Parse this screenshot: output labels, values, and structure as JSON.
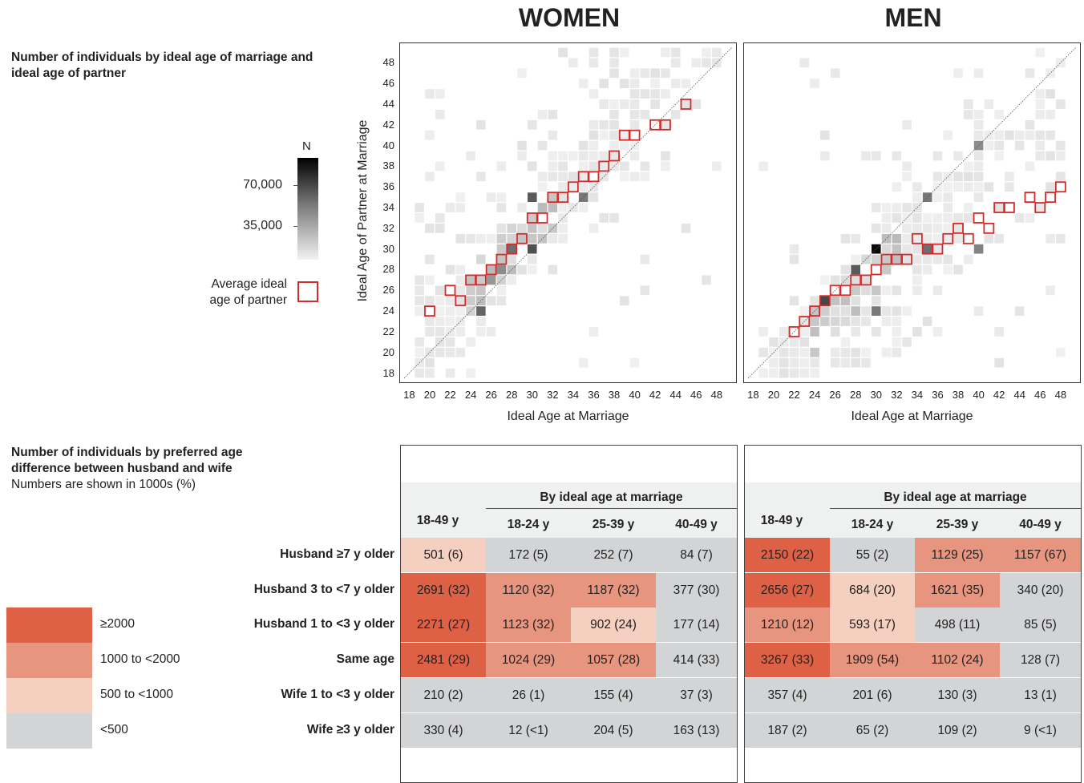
{
  "panels": {
    "women_title": "WOMEN",
    "men_title": "MEN"
  },
  "heatmap_section": {
    "title": "Number of individuals by ideal age of marriage and ideal age of partner"
  },
  "heat_legend": {
    "title": "N",
    "ticks": [
      "70,000",
      "35,000"
    ],
    "avg_label": "Average ideal age of partner"
  },
  "axes": {
    "xlabel": "Ideal Age at Marriage",
    "ylabel": "Ideal Age of Partner at Marriage",
    "x_ticks": [
      "18",
      "20",
      "22",
      "24",
      "26",
      "28",
      "30",
      "32",
      "34",
      "36",
      "38",
      "40",
      "42",
      "44",
      "46",
      "48"
    ],
    "y_ticks": [
      "48",
      "46",
      "44",
      "42",
      "40",
      "38",
      "36",
      "34",
      "32",
      "30",
      "28",
      "26",
      "24",
      "22",
      "20",
      "18"
    ]
  },
  "table_section": {
    "title": "Number of individuals by preferred age difference between husband and wife",
    "subtitle": "Numbers are shown in 1000s (%)"
  },
  "table_headers": {
    "overall": "18-49 y",
    "group": "By ideal age at marriage",
    "sub": [
      "18-24 y",
      "25-39 y",
      "40-49 y"
    ]
  },
  "color_legend": {
    "items": [
      {
        "label": "≥2000",
        "color": "#de6146"
      },
      {
        "label": "1000 to <2000",
        "color": "#e8957f"
      },
      {
        "label": "500 to <1000",
        "color": "#f5cfc0"
      },
      {
        "label": "<500",
        "color": "#d3d4d6"
      }
    ]
  },
  "chart_data": [
    {
      "type": "scatter",
      "title": "WOMEN",
      "description": "Heatmap of ideal age at marriage vs ideal partner age with average ideal partner age markers",
      "xlabel": "Ideal Age at Marriage",
      "ylabel": "Ideal Age of Partner at Marriage",
      "xlim": [
        18,
        49
      ],
      "ylim": [
        18,
        49
      ],
      "series": [
        {
          "name": "Average ideal age of partner",
          "x": [
            20,
            22,
            23,
            24,
            25,
            26,
            27,
            28,
            29,
            30,
            31,
            32,
            33,
            34,
            35,
            36,
            37,
            38,
            39,
            40,
            42,
            43,
            45
          ],
          "y": [
            24,
            26,
            25,
            27,
            27,
            28,
            29,
            30,
            31,
            33,
            33,
            35,
            35,
            36,
            37,
            37,
            38,
            39,
            41,
            41,
            42,
            42,
            44
          ]
        }
      ]
    },
    {
      "type": "scatter",
      "title": "MEN",
      "description": "Heatmap of ideal age at marriage vs ideal partner age with average ideal partner age markers",
      "xlabel": "Ideal Age at Marriage",
      "ylabel": "Ideal Age of Partner at Marriage",
      "xlim": [
        18,
        49
      ],
      "ylim": [
        18,
        49
      ],
      "series": [
        {
          "name": "Average ideal age of partner",
          "x": [
            22,
            23,
            24,
            25,
            26,
            27,
            28,
            29,
            30,
            31,
            32,
            33,
            34,
            35,
            36,
            37,
            38,
            39,
            40,
            41,
            42,
            43,
            45,
            46,
            47,
            48
          ],
          "y": [
            22,
            23,
            24,
            25,
            26,
            26,
            27,
            27,
            28,
            29,
            29,
            29,
            31,
            30,
            30,
            31,
            32,
            31,
            33,
            32,
            34,
            34,
            35,
            34,
            35,
            36
          ]
        }
      ]
    },
    {
      "type": "table",
      "title": "WOMEN",
      "columns": [
        "18-49 y",
        "18-24 y",
        "25-39 y",
        "40-49 y"
      ],
      "rows": [
        {
          "label": "Husband ≥7 y older",
          "cells": [
            "501 (6)",
            "172 (5)",
            "252 (7)",
            "84 (7)"
          ],
          "values": [
            501,
            172,
            252,
            84
          ]
        },
        {
          "label": "Husband 3 to <7 y older",
          "cells": [
            "2691 (32)",
            "1120 (32)",
            "1187 (32)",
            "377 (30)"
          ],
          "values": [
            2691,
            1120,
            1187,
            377
          ]
        },
        {
          "label": "Husband 1 to <3 y older",
          "cells": [
            "2271 (27)",
            "1123 (32)",
            "902 (24)",
            "177 (14)"
          ],
          "values": [
            2271,
            1123,
            902,
            177
          ]
        },
        {
          "label": "Same age",
          "cells": [
            "2481 (29)",
            "1024 (29)",
            "1057 (28)",
            "414 (33)"
          ],
          "values": [
            2481,
            1024,
            1057,
            414
          ]
        },
        {
          "label": "Wife 1 to <3 y older",
          "cells": [
            "210 (2)",
            "26 (1)",
            "155 (4)",
            "37 (3)"
          ],
          "values": [
            210,
            26,
            155,
            37
          ]
        },
        {
          "label": "Wife ≥3 y older",
          "cells": [
            "330 (4)",
            "12 (<1)",
            "204 (5)",
            "163 (13)"
          ],
          "values": [
            330,
            12,
            204,
            163
          ]
        }
      ]
    },
    {
      "type": "table",
      "title": "MEN",
      "columns": [
        "18-49 y",
        "18-24 y",
        "25-39 y",
        "40-49 y"
      ],
      "rows": [
        {
          "label": "Husband ≥7 y older",
          "cells": [
            "2150 (22)",
            "55 (2)",
            "1129 (25)",
            "1157 (67)"
          ],
          "values": [
            2150,
            55,
            1129,
            1157
          ]
        },
        {
          "label": "Husband 3 to <7 y older",
          "cells": [
            "2656 (27)",
            "684 (20)",
            "1621 (35)",
            "340 (20)"
          ],
          "values": [
            2656,
            684,
            1621,
            340
          ]
        },
        {
          "label": "Husband 1 to <3 y older",
          "cells": [
            "1210 (12)",
            "593 (17)",
            "498 (11)",
            "85 (5)"
          ],
          "values": [
            1210,
            593,
            498,
            85
          ]
        },
        {
          "label": "Same age",
          "cells": [
            "3267 (33)",
            "1909 (54)",
            "1102 (24)",
            "128 (7)"
          ],
          "values": [
            3267,
            1909,
            1102,
            128
          ]
        },
        {
          "label": "Wife 1 to <3 y older",
          "cells": [
            "357 (4)",
            "201 (6)",
            "130 (3)",
            "13 (1)"
          ],
          "values": [
            357,
            201,
            130,
            13
          ]
        },
        {
          "label": "Wife ≥3 y older",
          "cells": [
            "187 (2)",
            "65 (2)",
            "109 (2)",
            "9 (<1)"
          ],
          "values": [
            187,
            65,
            109,
            9
          ]
        }
      ]
    }
  ]
}
